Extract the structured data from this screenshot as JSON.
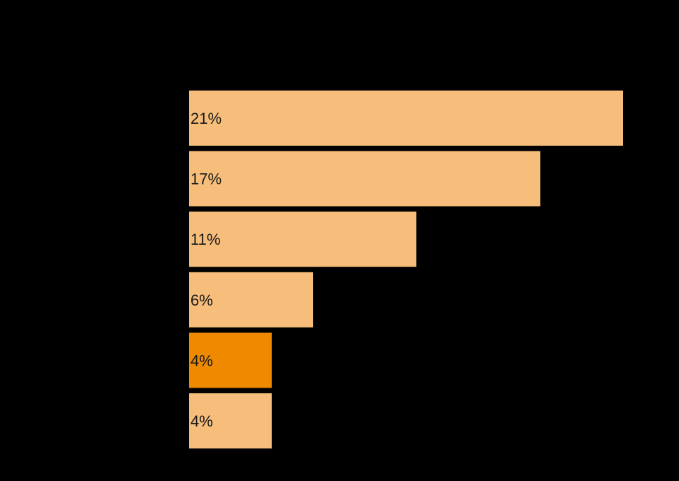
{
  "chart_data": {
    "type": "bar",
    "orientation": "horizontal",
    "title": "",
    "xlabel": "",
    "ylabel": "",
    "categories": [
      "",
      "",
      "",
      "",
      "",
      ""
    ],
    "values": [
      21,
      17,
      11,
      6,
      4,
      4
    ],
    "labels": [
      "21%",
      "17%",
      "11%",
      "6%",
      "4%",
      "4%"
    ],
    "value_unit": "%",
    "xlim": [
      0,
      21
    ],
    "highlight_index": 4,
    "grid": false,
    "legend": "none"
  },
  "colors": {
    "background": "#000000",
    "bar": "#f7bd7a",
    "bar_highlight": "#ef8a00",
    "label": "#1a1a1a"
  }
}
